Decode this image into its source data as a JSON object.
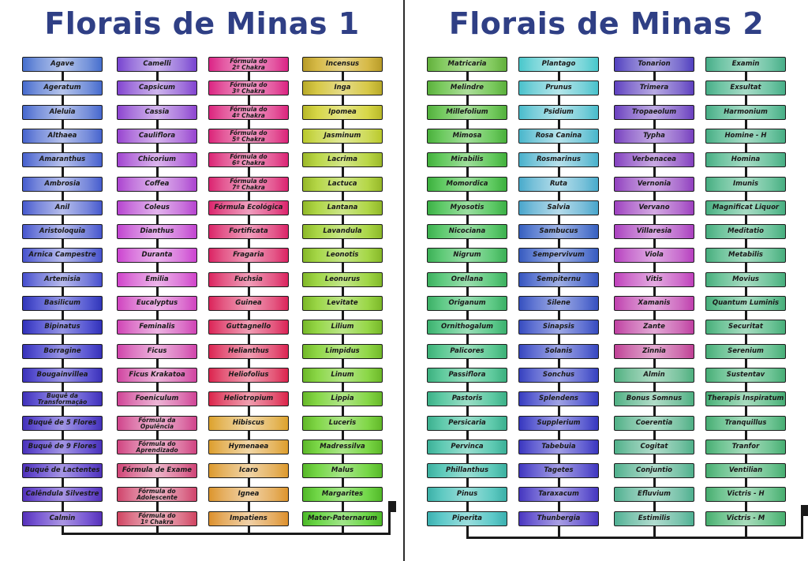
{
  "left": {
    "title": "Florais de Minas 1",
    "columns": [
      [
        "Agave",
        "Ageratum",
        "Aleluia",
        "Althaea",
        "Amaranthus",
        "Ambrosia",
        "Anil",
        "Aristoloquia",
        "Arnica Campestre",
        "Artemisia",
        "Basilicum",
        "Bipinatus",
        "Borragine",
        "Bougainvillea",
        "Buquê da\nTransformação",
        "Buquê de 5 Flores",
        "Buquê de 9 Flores",
        "Buquê de Lactentes",
        "Calêndula Silvestre",
        "Calmin"
      ],
      [
        "Camelli",
        "Capsicum",
        "Cassia",
        "Cauliflora",
        "Chicorium",
        "Coffea",
        "Coleus",
        "Dianthus",
        "Duranta",
        "Emilia",
        "Eucalyptus",
        "Feminalis",
        "Ficus",
        "Ficus Krakatoa",
        "Foeniculum",
        "Fórmula da\nOpulência",
        "Fórmula do\nAprendizado",
        "Fórmula de Exame",
        "Fórmula do\nAdolescente",
        "Fórmula do\n1º Chakra"
      ],
      [
        "Fórmula do\n2º Chakra",
        "Fórmula do\n3º Chakra",
        "Fórmula do\n4º Chakra",
        "Fórmula do\n5º Chakra",
        "Fórmula do\n6º Chakra",
        "Fórmula do\n7º Chakra",
        "Fórmula Ecológica",
        "Fortificata",
        "Fragaria",
        "Fuchsia",
        "Guinea",
        "Guttagnello",
        "Helianthus",
        "Heliofolius",
        "Heliotropium",
        "Hibiscus",
        "Hymenaea",
        "Icaro",
        "Ignea",
        "Impatiens"
      ],
      [
        "Incensus",
        "Inga",
        "Ipomea",
        "Jasminum",
        "Lacrima",
        "Lactuca",
        "Lantana",
        "Lavandula",
        "Leonotis",
        "Leonurus",
        "Levitate",
        "Lilium",
        "Limpidus",
        "Linum",
        "Lippia",
        "Luceris",
        "Madressilva",
        "Malus",
        "Margarites",
        "Mater-Paternarum"
      ]
    ]
  },
  "right": {
    "title": "Florais de Minas 2",
    "columns": [
      [
        "Matricaria",
        "Melindre",
        "Millefolium",
        "Mimosa",
        "Mirabilis",
        "Momordica",
        "Myosotis",
        "Nicociana",
        "Nigrum",
        "Orellana",
        "Origanum",
        "Ornithogalum",
        "Palicores",
        "Passiflora",
        "Pastoris",
        "Persicaria",
        "Pervinca",
        "Phillanthus",
        "Pinus",
        "Piperita"
      ],
      [
        "Plantago",
        "Prunus",
        "Psidium",
        "Rosa Canina",
        "Rosmarinus",
        "Ruta",
        "Salvia",
        "Sambucus",
        "Sempervivum",
        "Sempiternu",
        "Silene",
        "Sinapsis",
        "Solanis",
        "Sonchus",
        "Splendens",
        "Supplerium",
        "Tabebuia",
        "Tagetes",
        "Taraxacum",
        "Thunbergia"
      ],
      [
        "Tonarion",
        "Trimera",
        "Tropaeolum",
        "Typha",
        "Verbenacea",
        "Vernonia",
        "Vervano",
        "Villaresia",
        "Viola",
        "Vitis",
        "Xamanis",
        "Zante",
        "Zinnia",
        "Almin",
        "Bonus Somnus",
        "Coerentia",
        "Cogitat",
        "Conjuntio",
        "Efluvium",
        "Estimilis"
      ],
      [
        "Examin",
        "Exsultat",
        "Harmonium",
        "Homine - H",
        "Homina",
        "Imunis",
        "Magnificat Liquor",
        "Meditatio",
        "Metabilis",
        "Movius",
        "Quantum Luminis",
        "Securitat",
        "Serenium",
        "Sustentav",
        "Therapis Inspiratum",
        "Tranquillus",
        "Tranfor",
        "Ventilian",
        "Victris - H",
        "Victris - M"
      ]
    ]
  }
}
